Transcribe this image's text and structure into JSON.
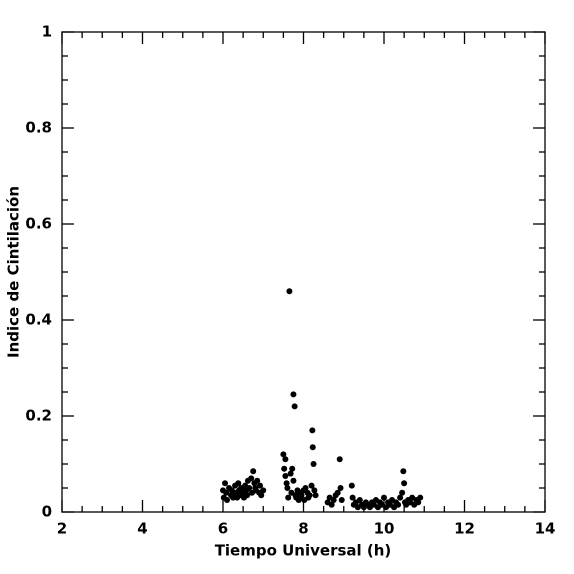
{
  "chart_data": {
    "type": "scatter",
    "x_label": "Tiempo Universal (h)",
    "y_label": "Indice de Cintilación",
    "xlim": [
      2,
      14
    ],
    "xticks": [
      2,
      4,
      6,
      8,
      10,
      12,
      14
    ],
    "xminorticks": [
      2.5,
      3,
      3.5,
      4.5,
      5,
      5.5,
      6.5,
      7,
      7.5,
      8.5,
      9,
      9.5,
      10.5,
      11,
      11.5,
      12.5,
      13,
      13.5
    ],
    "ylim": [
      0,
      1
    ],
    "yticks": [
      0,
      0.2,
      0.4,
      0.6,
      0.8,
      1
    ],
    "yminorticks": [
      0.05,
      0.1,
      0.15,
      0.25,
      0.3,
      0.35,
      0.45,
      0.5,
      0.55,
      0.65,
      0.7,
      0.75,
      0.85,
      0.9,
      0.95
    ],
    "color": "#000000",
    "x": [
      6.0,
      6.02,
      6.05,
      6.08,
      6.1,
      6.15,
      6.2,
      6.22,
      6.25,
      6.3,
      6.32,
      6.35,
      6.38,
      6.4,
      6.42,
      6.45,
      6.5,
      6.52,
      6.55,
      6.58,
      6.6,
      6.62,
      6.65,
      6.7,
      6.72,
      6.75,
      6.78,
      6.8,
      6.82,
      6.85,
      6.9,
      6.92,
      6.95,
      7.0,
      7.5,
      7.52,
      7.55,
      7.55,
      7.58,
      7.6,
      7.62,
      7.65,
      7.68,
      7.7,
      7.72,
      7.75,
      7.75,
      7.78,
      7.8,
      7.82,
      7.85,
      7.88,
      7.9,
      7.92,
      7.95,
      8.0,
      8.02,
      8.05,
      8.1,
      8.12,
      8.15,
      8.2,
      8.22,
      8.23,
      8.25,
      8.27,
      8.3,
      8.6,
      8.65,
      8.7,
      8.75,
      8.8,
      8.85,
      8.9,
      8.92,
      8.95,
      9.2,
      9.22,
      9.25,
      9.3,
      9.35,
      9.4,
      9.45,
      9.5,
      9.55,
      9.6,
      9.65,
      9.7,
      9.75,
      9.8,
      9.85,
      9.9,
      9.95,
      10.0,
      10.05,
      10.1,
      10.15,
      10.2,
      10.25,
      10.3,
      10.35,
      10.4,
      10.45,
      10.48,
      10.5,
      10.52,
      10.55,
      10.6,
      10.65,
      10.7,
      10.75,
      10.8,
      10.85,
      10.9
    ],
    "values": [
      0.045,
      0.03,
      0.06,
      0.04,
      0.025,
      0.05,
      0.035,
      0.045,
      0.03,
      0.055,
      0.04,
      0.03,
      0.06,
      0.045,
      0.035,
      0.05,
      0.04,
      0.03,
      0.055,
      0.045,
      0.035,
      0.065,
      0.05,
      0.07,
      0.04,
      0.085,
      0.06,
      0.05,
      0.045,
      0.065,
      0.04,
      0.055,
      0.035,
      0.045,
      0.12,
      0.09,
      0.11,
      0.075,
      0.06,
      0.05,
      0.03,
      0.46,
      0.08,
      0.04,
      0.09,
      0.065,
      0.245,
      0.22,
      0.035,
      0.03,
      0.045,
      0.025,
      0.04,
      0.03,
      0.035,
      0.045,
      0.025,
      0.05,
      0.04,
      0.03,
      0.035,
      0.055,
      0.17,
      0.135,
      0.1,
      0.045,
      0.035,
      0.02,
      0.03,
      0.015,
      0.025,
      0.035,
      0.04,
      0.11,
      0.05,
      0.025,
      0.055,
      0.03,
      0.015,
      0.02,
      0.01,
      0.025,
      0.015,
      0.01,
      0.02,
      0.015,
      0.01,
      0.02,
      0.015,
      0.025,
      0.01,
      0.02,
      0.015,
      0.03,
      0.01,
      0.02,
      0.015,
      0.025,
      0.01,
      0.02,
      0.015,
      0.03,
      0.04,
      0.085,
      0.06,
      0.02,
      0.015,
      0.025,
      0.02,
      0.03,
      0.015,
      0.025,
      0.02,
      0.03
    ]
  }
}
